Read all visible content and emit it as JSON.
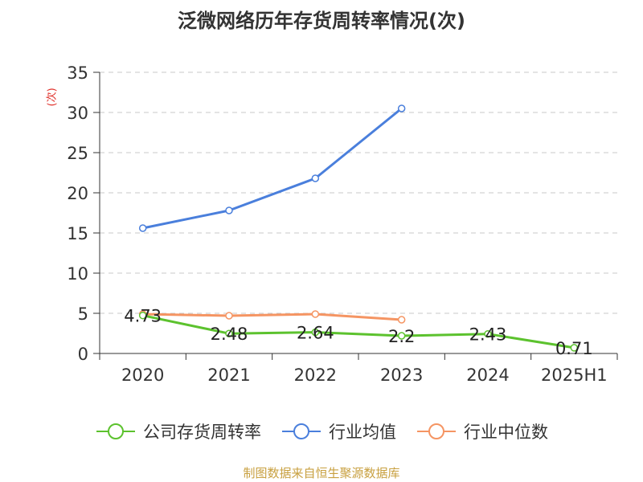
{
  "title": "泛微网络历年存货周转率情况(次)",
  "unit_label": "(次)",
  "source": "制图数据来自恒生聚源数据库",
  "chart_data": {
    "type": "line",
    "title": "泛微网络历年存货周转率情况(次)",
    "ylabel": "(次)",
    "categories": [
      "2020",
      "2021",
      "2022",
      "2023",
      "2024",
      "2025H1"
    ],
    "ylim": [
      0,
      35
    ],
    "yticks": [
      0,
      5,
      10,
      15,
      20,
      25,
      30,
      35
    ],
    "grid": true,
    "legend_position": "bottom",
    "series": [
      {
        "name": "公司存货周转率",
        "color": "#5cc22e",
        "values": [
          4.73,
          2.48,
          2.64,
          2.2,
          2.43,
          0.71
        ],
        "show_labels": true
      },
      {
        "name": "行业均值",
        "color": "#4a7fdc",
        "values": [
          15.6,
          17.8,
          21.8,
          30.5,
          null,
          null
        ],
        "show_labels": false
      },
      {
        "name": "行业中位数",
        "color": "#f59563",
        "values": [
          4.9,
          4.7,
          4.9,
          4.2,
          null,
          null
        ],
        "show_labels": false
      }
    ]
  }
}
